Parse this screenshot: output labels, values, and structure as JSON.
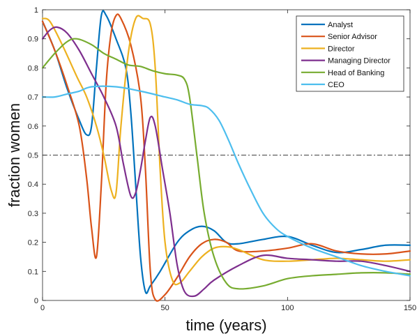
{
  "chart_data": {
    "type": "line",
    "xlabel": "time (years)",
    "ylabel": "fraction women",
    "xlim": [
      0,
      150
    ],
    "ylim": [
      0,
      1
    ],
    "x_ticks": [
      0,
      50,
      100,
      150
    ],
    "y_ticks": [
      0,
      0.1,
      0.2,
      0.3,
      0.4,
      0.5,
      0.6,
      0.7,
      0.8,
      0.9,
      1
    ],
    "grid": false,
    "legend_position": "top-right",
    "reference_line": {
      "y": 0.5,
      "style": "dash-dot",
      "color": "#000000"
    },
    "series": [
      {
        "name": "Analyst",
        "color": "#0072BD",
        "points": [
          [
            0,
            0.96
          ],
          [
            5,
            0.86
          ],
          [
            10,
            0.73
          ],
          [
            15,
            0.62
          ],
          [
            18,
            0.57
          ],
          [
            20,
            0.6
          ],
          [
            22,
            0.8
          ],
          [
            24,
            0.98
          ],
          [
            26,
            0.98
          ],
          [
            30,
            0.9
          ],
          [
            34,
            0.8
          ],
          [
            36,
            0.65
          ],
          [
            38,
            0.4
          ],
          [
            40,
            0.15
          ],
          [
            42,
            0.03
          ],
          [
            44,
            0.05
          ],
          [
            48,
            0.1
          ],
          [
            55,
            0.2
          ],
          [
            60,
            0.24
          ],
          [
            65,
            0.255
          ],
          [
            70,
            0.24
          ],
          [
            75,
            0.2
          ],
          [
            80,
            0.195
          ],
          [
            90,
            0.21
          ],
          [
            100,
            0.22
          ],
          [
            110,
            0.19
          ],
          [
            120,
            0.165
          ],
          [
            130,
            0.175
          ],
          [
            140,
            0.19
          ],
          [
            150,
            0.19
          ]
        ]
      },
      {
        "name": "Senior Advisor",
        "color": "#D95319",
        "points": [
          [
            0,
            0.96
          ],
          [
            5,
            0.86
          ],
          [
            10,
            0.74
          ],
          [
            15,
            0.6
          ],
          [
            18,
            0.42
          ],
          [
            20,
            0.25
          ],
          [
            22,
            0.15
          ],
          [
            24,
            0.4
          ],
          [
            26,
            0.75
          ],
          [
            28,
            0.92
          ],
          [
            30,
            0.98
          ],
          [
            32,
            0.97
          ],
          [
            36,
            0.88
          ],
          [
            40,
            0.7
          ],
          [
            42,
            0.45
          ],
          [
            44,
            0.1
          ],
          [
            46,
            0.003
          ],
          [
            50,
            0.02
          ],
          [
            55,
            0.08
          ],
          [
            60,
            0.15
          ],
          [
            65,
            0.195
          ],
          [
            70,
            0.21
          ],
          [
            75,
            0.2
          ],
          [
            80,
            0.17
          ],
          [
            90,
            0.17
          ],
          [
            100,
            0.18
          ],
          [
            110,
            0.195
          ],
          [
            120,
            0.17
          ],
          [
            130,
            0.16
          ],
          [
            140,
            0.16
          ],
          [
            150,
            0.17
          ]
        ]
      },
      {
        "name": "Director",
        "color": "#EDB120",
        "points": [
          [
            0,
            0.97
          ],
          [
            3,
            0.96
          ],
          [
            8,
            0.88
          ],
          [
            14,
            0.77
          ],
          [
            18,
            0.7
          ],
          [
            22,
            0.6
          ],
          [
            25,
            0.5
          ],
          [
            28,
            0.38
          ],
          [
            30,
            0.37
          ],
          [
            32,
            0.6
          ],
          [
            35,
            0.85
          ],
          [
            38,
            0.97
          ],
          [
            41,
            0.97
          ],
          [
            44,
            0.95
          ],
          [
            46,
            0.8
          ],
          [
            48,
            0.45
          ],
          [
            50,
            0.2
          ],
          [
            53,
            0.07
          ],
          [
            56,
            0.06
          ],
          [
            60,
            0.1
          ],
          [
            65,
            0.15
          ],
          [
            70,
            0.18
          ],
          [
            75,
            0.185
          ],
          [
            80,
            0.175
          ],
          [
            90,
            0.14
          ],
          [
            100,
            0.135
          ],
          [
            110,
            0.14
          ],
          [
            120,
            0.145
          ],
          [
            130,
            0.14
          ],
          [
            140,
            0.135
          ],
          [
            150,
            0.14
          ]
        ]
      },
      {
        "name": "Managing Director",
        "color": "#7E2F8E",
        "points": [
          [
            0,
            0.9
          ],
          [
            3,
            0.93
          ],
          [
            6,
            0.94
          ],
          [
            10,
            0.92
          ],
          [
            15,
            0.86
          ],
          [
            20,
            0.78
          ],
          [
            25,
            0.7
          ],
          [
            30,
            0.6
          ],
          [
            33,
            0.47
          ],
          [
            36,
            0.36
          ],
          [
            38,
            0.37
          ],
          [
            40,
            0.45
          ],
          [
            42,
            0.55
          ],
          [
            44,
            0.63
          ],
          [
            46,
            0.6
          ],
          [
            49,
            0.45
          ],
          [
            52,
            0.3
          ],
          [
            55,
            0.12
          ],
          [
            58,
            0.03
          ],
          [
            62,
            0.015
          ],
          [
            66,
            0.04
          ],
          [
            70,
            0.07
          ],
          [
            80,
            0.12
          ],
          [
            90,
            0.155
          ],
          [
            100,
            0.145
          ],
          [
            110,
            0.14
          ],
          [
            120,
            0.135
          ],
          [
            130,
            0.135
          ],
          [
            140,
            0.12
          ],
          [
            150,
            0.1
          ]
        ]
      },
      {
        "name": "Head of Banking",
        "color": "#77AC30",
        "points": [
          [
            0,
            0.8
          ],
          [
            5,
            0.85
          ],
          [
            10,
            0.89
          ],
          [
            14,
            0.9
          ],
          [
            20,
            0.88
          ],
          [
            25,
            0.85
          ],
          [
            30,
            0.83
          ],
          [
            35,
            0.81
          ],
          [
            40,
            0.805
          ],
          [
            45,
            0.79
          ],
          [
            50,
            0.78
          ],
          [
            55,
            0.775
          ],
          [
            58,
            0.76
          ],
          [
            60,
            0.7
          ],
          [
            63,
            0.5
          ],
          [
            66,
            0.3
          ],
          [
            70,
            0.15
          ],
          [
            75,
            0.06
          ],
          [
            80,
            0.04
          ],
          [
            90,
            0.05
          ],
          [
            100,
            0.075
          ],
          [
            110,
            0.085
          ],
          [
            120,
            0.09
          ],
          [
            130,
            0.095
          ],
          [
            140,
            0.095
          ],
          [
            150,
            0.09
          ]
        ]
      },
      {
        "name": "CEO",
        "color": "#4DBEEE",
        "points": [
          [
            0,
            0.7
          ],
          [
            5,
            0.7
          ],
          [
            10,
            0.71
          ],
          [
            15,
            0.72
          ],
          [
            20,
            0.735
          ],
          [
            30,
            0.735
          ],
          [
            40,
            0.72
          ],
          [
            50,
            0.7
          ],
          [
            55,
            0.69
          ],
          [
            60,
            0.675
          ],
          [
            65,
            0.67
          ],
          [
            68,
            0.66
          ],
          [
            72,
            0.62
          ],
          [
            76,
            0.55
          ],
          [
            80,
            0.47
          ],
          [
            85,
            0.38
          ],
          [
            90,
            0.3
          ],
          [
            95,
            0.25
          ],
          [
            100,
            0.22
          ],
          [
            110,
            0.18
          ],
          [
            120,
            0.15
          ],
          [
            130,
            0.12
          ],
          [
            140,
            0.1
          ],
          [
            150,
            0.085
          ]
        ]
      }
    ]
  }
}
